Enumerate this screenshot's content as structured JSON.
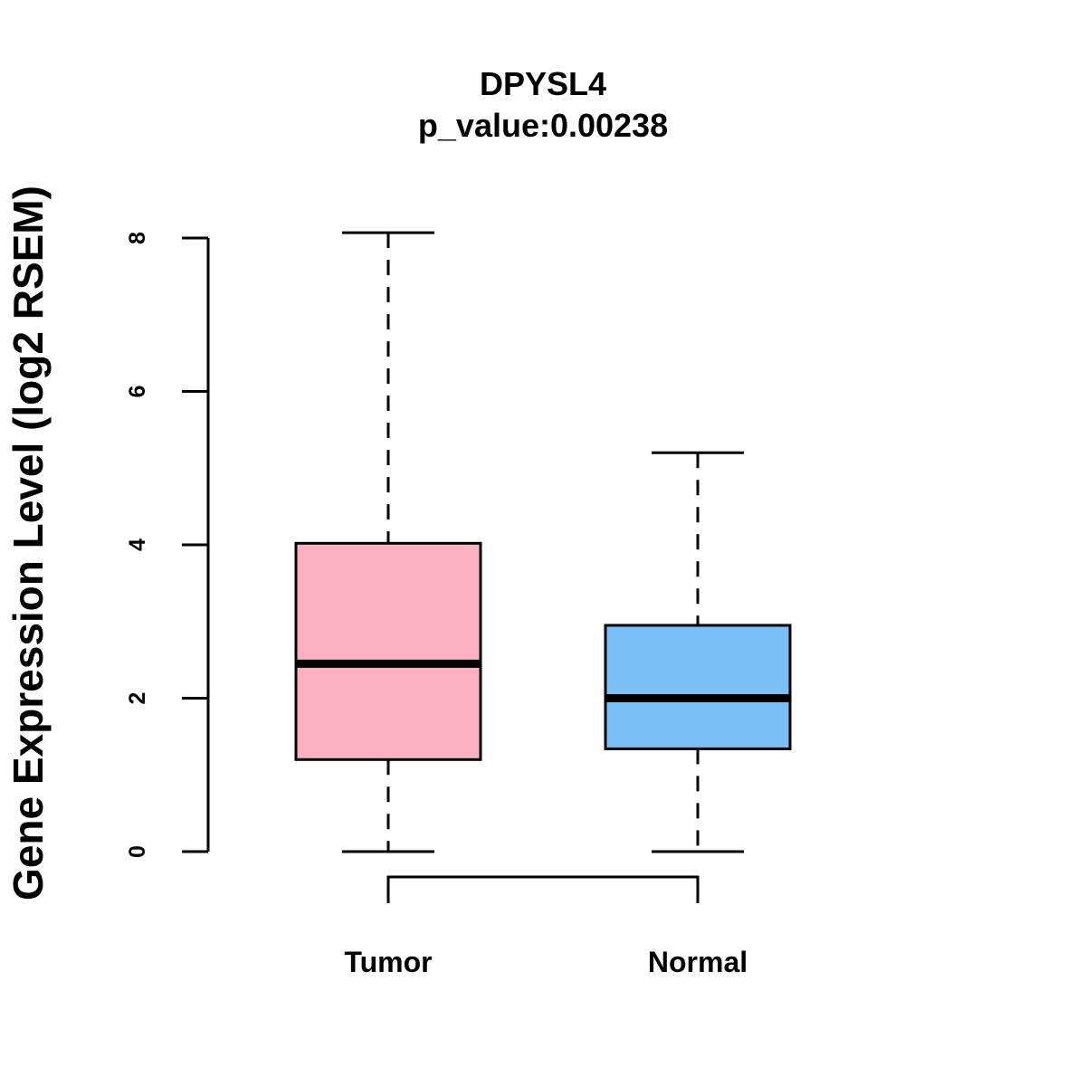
{
  "chart_data": {
    "type": "box",
    "title": "DPYSL4",
    "subtitle": "p_value:0.00238",
    "xlabel": "",
    "ylabel": "Gene Expression Level (log2 RSEM)",
    "ylim": [
      0,
      8
    ],
    "yticks": [
      0,
      2,
      4,
      6,
      8
    ],
    "ytick_labels": [
      "0",
      "2",
      "4",
      "6",
      "8"
    ],
    "grid": false,
    "categories": [
      "Tumor",
      "Normal"
    ],
    "boxes": [
      {
        "category": "Tumor",
        "min": 0,
        "q1": 1.2,
        "median": 2.45,
        "q3": 4.02,
        "max": 8.07,
        "color": "#FBB1C2"
      },
      {
        "category": "Normal",
        "min": 0,
        "q1": 1.34,
        "median": 2.0,
        "q3": 2.95,
        "max": 5.2,
        "color": "#7BBFF7"
      }
    ],
    "comparison_bracket": {
      "from": "Tumor",
      "to": "Normal"
    }
  }
}
